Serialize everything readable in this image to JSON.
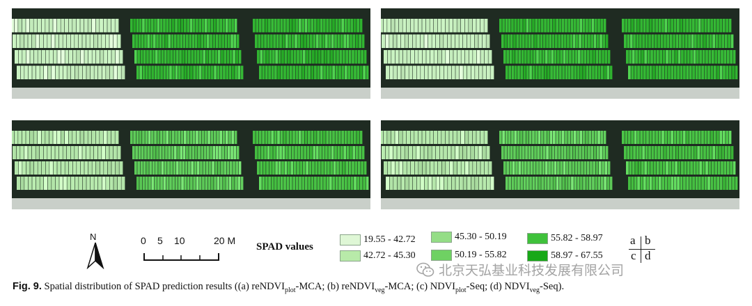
{
  "figure": {
    "panels": [
      {
        "id": "a",
        "pattern": [
          0,
          1,
          1
        ],
        "colors": [
          "#c8f0c0",
          "#34b834",
          "#2fb52f"
        ]
      },
      {
        "id": "b",
        "pattern": [
          0,
          1,
          1
        ],
        "colors": [
          "#c8f0c0",
          "#34b834",
          "#2fb52f"
        ]
      },
      {
        "id": "c",
        "pattern": [
          0,
          1,
          2
        ],
        "colors": [
          "#b6e8ac",
          "#5fcc5a",
          "#48c244"
        ]
      },
      {
        "id": "d",
        "pattern": [
          0,
          1,
          2
        ],
        "colors": [
          "#b6e8ac",
          "#5fcc5a",
          "#48c244"
        ]
      }
    ]
  },
  "north_arrow": {
    "label": "N",
    "icon": "north-arrow-icon"
  },
  "scale_bar": {
    "ticks": [
      "0",
      "5",
      "10",
      "20 M"
    ]
  },
  "legend": {
    "title": "SPAD values",
    "classes": [
      {
        "range": "19.55 - 42.72",
        "color": "#dff7d6"
      },
      {
        "range": "42.72 - 45.30",
        "color": "#b8eaa9"
      },
      {
        "range": "45.30 - 50.19",
        "color": "#94dd86"
      },
      {
        "range": "50.19 - 55.82",
        "color": "#6fd163"
      },
      {
        "range": "55.82 - 58.97",
        "color": "#3fc13b"
      },
      {
        "range": "58.97 - 67.55",
        "color": "#18a818"
      }
    ]
  },
  "panel_key": {
    "tl": "a",
    "tr": "b",
    "bl": "c",
    "br": "d"
  },
  "watermark": {
    "text": "北京天弘基业科技发展有限公司",
    "icon": "wechat-icon"
  },
  "caption": {
    "label": "Fig. 9.",
    "text_1": " Spatial distribution of SPAD prediction results ((a) reNDVI",
    "sub_1": "plot",
    "text_2": "-MCA; (b) reNDVI",
    "sub_2": "veg",
    "text_3": "-MCA; (c) NDVI",
    "sub_3": "plot",
    "text_4": "-Seq; (d) NDVI",
    "sub_4": "veg",
    "text_5": "-Seq)."
  }
}
